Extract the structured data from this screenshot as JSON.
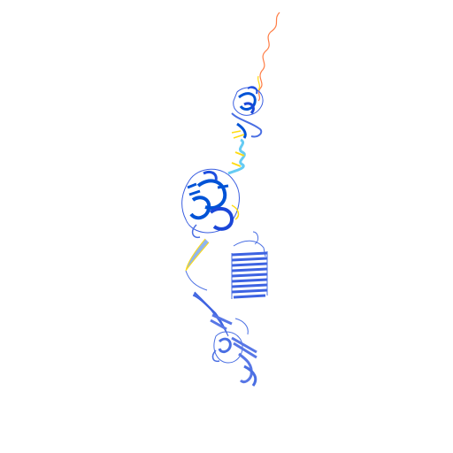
{
  "scene": {
    "subject": "protein-structure-cartoon",
    "background_color": "#ffffff",
    "colors": {
      "very_high_confidence": "#0053d6",
      "confident": "#4a6fe3",
      "low_confidence": "#65cbf3",
      "medium_low": "#ffdb13",
      "very_low_confidence": "#ff7d45"
    }
  }
}
